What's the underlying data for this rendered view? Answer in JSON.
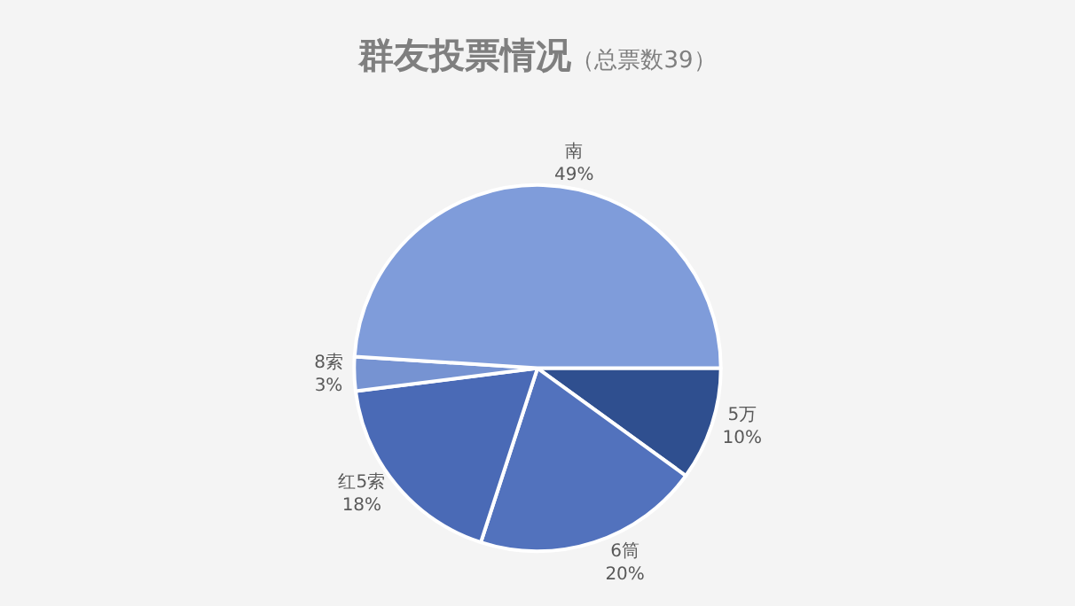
{
  "chart_data": {
    "type": "pie",
    "title": "群友投票情况",
    "subtitle": "（总票数39）",
    "categories": [
      "5万",
      "6筒",
      "红5索",
      "8索",
      "南"
    ],
    "values": [
      10,
      20,
      18,
      3,
      49
    ],
    "value_labels": [
      "10%",
      "20%",
      "18%",
      "3%",
      "49%"
    ],
    "colors": [
      "#2f4f8f",
      "#5272bd",
      "#4a6ab6",
      "#7693d2",
      "#7f9cda"
    ],
    "legend": false
  }
}
